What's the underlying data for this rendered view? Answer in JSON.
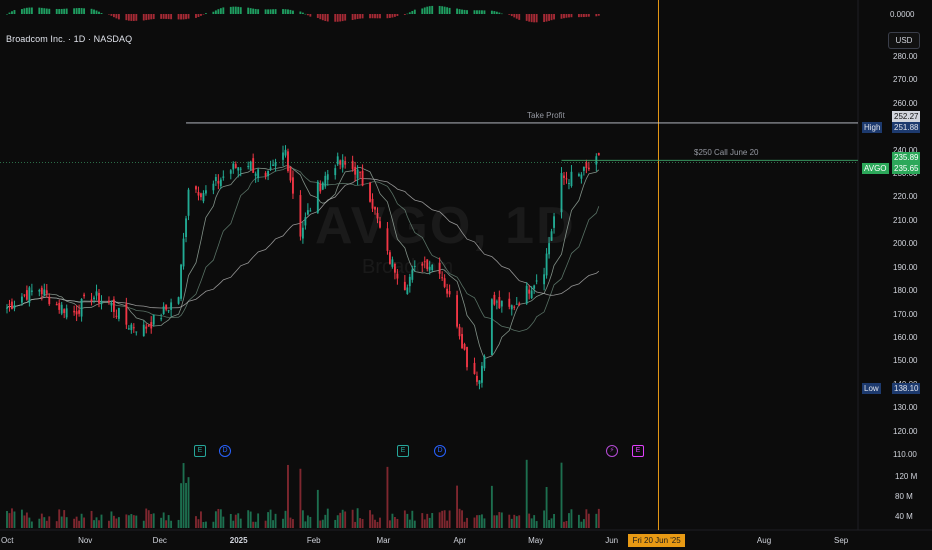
{
  "header": {
    "symbol_title": "Broadcom Inc. · 1D · NASDAQ",
    "currency_button": "USD",
    "watermark": "AVGO, 1D",
    "watermark_sub": "Broadcom"
  },
  "chart_data": {
    "type": "candlestick",
    "symbol": "AVGO",
    "interval": "1D",
    "ylim": [
      105,
      287
    ],
    "y_ticks": [
      "280.00",
      "270.00",
      "260.00",
      "250.00",
      "240.00",
      "230.00",
      "220.00",
      "210.00",
      "200.00",
      "190.00",
      "180.00",
      "170.00",
      "160.00",
      "150.00",
      "140.00",
      "130.00",
      "120.00",
      "110.00"
    ],
    "x_ticks": [
      "Oct",
      "Nov",
      "Dec",
      "2025",
      "Feb",
      "Mar",
      "Apr",
      "May",
      "Jun",
      "Aug",
      "Sep"
    ],
    "crosshair_date": "Fri 20 Jun '25",
    "oscillator_label": "0.0000",
    "volume_ticks": [
      "120 M",
      "80 M",
      "40 M"
    ],
    "price_badges": [
      {
        "label": "",
        "value": "252.27"
      },
      {
        "label": "High",
        "value": "251.88"
      },
      {
        "label": "",
        "value": "235.89"
      },
      {
        "label": "AVGO",
        "value": "235.65"
      },
      {
        "label": "Low",
        "value": "138.10"
      }
    ],
    "annotations": [
      {
        "text": "Take Profit",
        "price": 252.27
      },
      {
        "text": "$250 Call June 20",
        "price": 235.89
      }
    ],
    "events": [
      "E",
      "D",
      "E",
      "D",
      "E"
    ],
    "close_path": [
      [
        "2024-10-01",
        173
      ],
      [
        "2024-10-07",
        178
      ],
      [
        "2024-10-14",
        181
      ],
      [
        "2024-10-21",
        174
      ],
      [
        "2024-10-28",
        171
      ],
      [
        "2024-11-04",
        178
      ],
      [
        "2024-11-11",
        175
      ],
      [
        "2024-11-18",
        166
      ],
      [
        "2024-11-25",
        164
      ],
      [
        "2024-12-02",
        170
      ],
      [
        "2024-12-09",
        178
      ],
      [
        "2024-12-13",
        225
      ],
      [
        "2024-12-20",
        222
      ],
      [
        "2024-12-30",
        232
      ],
      [
        "2025-01-06",
        235
      ],
      [
        "2025-01-13",
        227
      ],
      [
        "2025-01-21",
        240
      ],
      [
        "2025-01-27",
        205
      ],
      [
        "2025-02-03",
        224
      ],
      [
        "2025-02-10",
        235
      ],
      [
        "2025-02-18",
        232
      ],
      [
        "2025-02-24",
        221
      ],
      [
        "2025-03-03",
        195
      ],
      [
        "2025-03-10",
        183
      ],
      [
        "2025-03-17",
        193
      ],
      [
        "2025-03-24",
        190
      ],
      [
        "2025-03-31",
        167
      ],
      [
        "2025-04-04",
        150
      ],
      [
        "2025-04-09",
        142
      ],
      [
        "2025-04-14",
        175
      ],
      [
        "2025-04-21",
        172
      ],
      [
        "2025-04-28",
        180
      ],
      [
        "2025-05-05",
        190
      ],
      [
        "2025-05-12",
        228
      ],
      [
        "2025-05-19",
        229
      ],
      [
        "2025-05-27",
        235.65
      ]
    ]
  }
}
